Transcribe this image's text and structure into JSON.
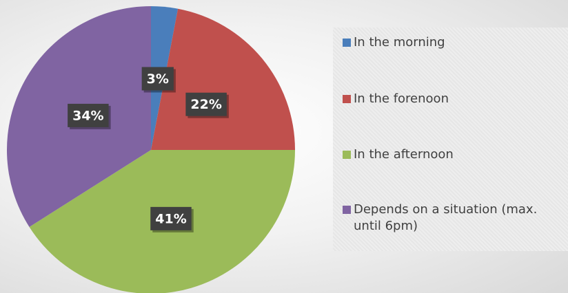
{
  "chart_data": {
    "type": "pie",
    "categories": [
      "In the morning",
      "In the forenoon",
      "In the afternoon",
      "Depends on a situation (max. until 6pm)"
    ],
    "values": [
      3,
      22,
      41,
      34
    ],
    "value_labels": [
      "3%",
      "22%",
      "41%",
      "34%"
    ],
    "colors": [
      "#4a7ebb",
      "#c0504d",
      "#9bbb59",
      "#8064a2"
    ],
    "legend": "right"
  }
}
